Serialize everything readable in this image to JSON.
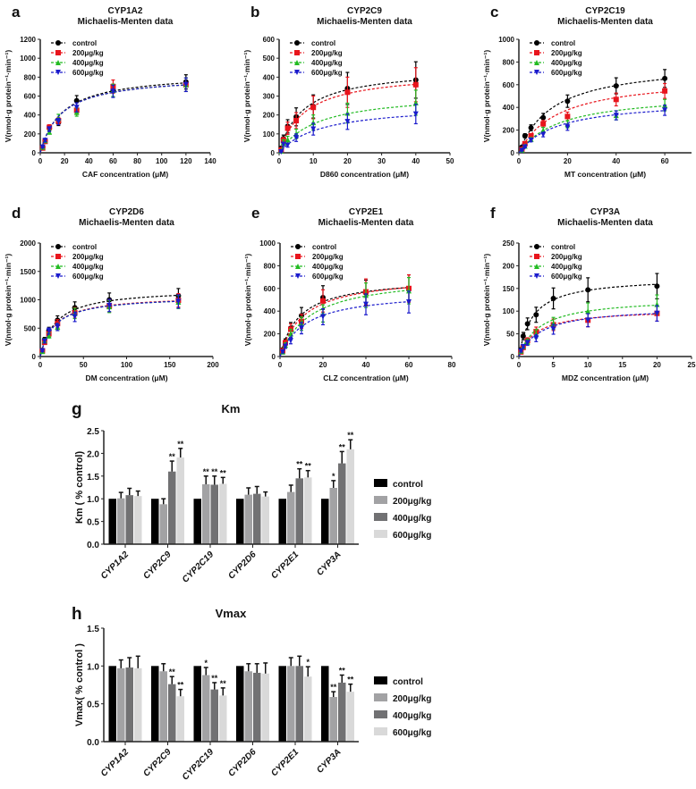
{
  "chart_data": [
    {
      "panel": "a",
      "type": "scatter",
      "title": "CYP1A2",
      "subtitle": "Michaelis-Menten data",
      "xlabel": "CAF concentration (μM)",
      "ylabel": "V(nmol·g protein⁻¹·min⁻¹)",
      "xlim": [
        0,
        140
      ],
      "ylim": [
        0,
        1200
      ],
      "xticks": [
        0,
        20,
        40,
        60,
        80,
        100,
        120,
        140
      ],
      "yticks": [
        0,
        200,
        400,
        600,
        800,
        1000,
        1200
      ],
      "err_frac": 0.1,
      "x": [
        2,
        4,
        7.5,
        15,
        30,
        60,
        120
      ],
      "series": [
        {
          "name": "control",
          "values": [
            60,
            130,
            260,
            320,
            550,
            660,
            750
          ],
          "fit_vmax": 850,
          "fit_km": 18
        },
        {
          "name": "200μg/kg",
          "values": [
            50,
            120,
            270,
            340,
            450,
            700,
            720
          ],
          "fit_vmax": 820,
          "fit_km": 17
        },
        {
          "name": "400μg/kg",
          "values": [
            60,
            130,
            220,
            370,
            430,
            660,
            720
          ],
          "fit_vmax": 820,
          "fit_km": 17
        },
        {
          "name": "600μg/kg",
          "values": [
            60,
            130,
            250,
            330,
            480,
            650,
            720
          ],
          "fit_vmax": 820,
          "fit_km": 17
        }
      ]
    },
    {
      "panel": "b",
      "type": "scatter",
      "title": "CYP2C9",
      "subtitle": "Michaelis-Menten data",
      "xlabel": "D860 concentration (μM)",
      "ylabel": "V(nmol·g protein⁻¹·min⁻¹)",
      "xlim": [
        0,
        50
      ],
      "ylim": [
        0,
        600
      ],
      "xticks": [
        0,
        10,
        20,
        30,
        40,
        50
      ],
      "yticks": [
        0,
        100,
        200,
        300,
        400,
        500,
        600
      ],
      "err_frac": 0.25,
      "x": [
        0.625,
        1.25,
        2.5,
        5,
        10,
        20,
        40
      ],
      "series": [
        {
          "name": "control",
          "values": [
            25,
            75,
            140,
            190,
            245,
            340,
            385
          ],
          "fit_vmax": 450,
          "fit_km": 7
        },
        {
          "name": "200μg/kg",
          "values": [
            15,
            65,
            130,
            170,
            240,
            320,
            360
          ],
          "fit_vmax": 430,
          "fit_km": 7.5
        },
        {
          "name": "400μg/kg",
          "values": [
            10,
            55,
            70,
            100,
            160,
            210,
            265
          ],
          "fit_vmax": 320,
          "fit_km": 11
        },
        {
          "name": "600μg/kg",
          "values": [
            5,
            45,
            40,
            80,
            125,
            165,
            205
          ],
          "fit_vmax": 255,
          "fit_km": 12
        }
      ]
    },
    {
      "panel": "c",
      "type": "scatter",
      "title": "CYP2C19",
      "subtitle": "Michaelis-Menten data",
      "xlabel": "MT concentration (μM)",
      "ylabel": "V(nmol·g protein⁻¹·min⁻¹)",
      "xlim": [
        0,
        71
      ],
      "ylim": [
        0,
        1000
      ],
      "xticks": [
        0,
        20,
        40,
        60
      ],
      "yticks": [
        0,
        200,
        400,
        600,
        800,
        1000
      ],
      "err_frac": 0.12,
      "x": [
        1.25,
        2.5,
        5,
        10,
        20,
        40,
        60
      ],
      "series": [
        {
          "name": "control",
          "values": [
            50,
            150,
            220,
            310,
            455,
            590,
            655
          ],
          "fit_vmax": 800,
          "fit_km": 14
        },
        {
          "name": "200μg/kg",
          "values": [
            30,
            80,
            150,
            255,
            320,
            470,
            545
          ],
          "fit_vmax": 680,
          "fit_km": 16
        },
        {
          "name": "400μg/kg",
          "values": [
            25,
            60,
            120,
            200,
            250,
            330,
            420
          ],
          "fit_vmax": 530,
          "fit_km": 17
        },
        {
          "name": "600μg/kg",
          "values": [
            20,
            50,
            110,
            160,
            225,
            330,
            375
          ],
          "fit_vmax": 470,
          "fit_km": 16
        }
      ]
    },
    {
      "panel": "d",
      "type": "scatter",
      "title": "CYP2D6",
      "subtitle": "Michaelis-Menten data",
      "xlabel": "DM concentration (μM)",
      "ylabel": "V(nmol·g protein⁻¹·min⁻¹)",
      "xlim": [
        0,
        200
      ],
      "ylim": [
        0,
        2000
      ],
      "xticks": [
        0,
        50,
        100,
        150,
        200
      ],
      "yticks": [
        0,
        500,
        1000,
        1500,
        2000
      ],
      "err_frac": 0.12,
      "x": [
        2.5,
        5,
        10,
        20,
        40,
        80,
        160
      ],
      "series": [
        {
          "name": "control",
          "values": [
            110,
            300,
            460,
            640,
            860,
            1000,
            1070
          ],
          "fit_vmax": 1200,
          "fit_km": 18
        },
        {
          "name": "200μg/kg",
          "values": [
            100,
            250,
            400,
            580,
            770,
            890,
            990
          ],
          "fit_vmax": 1080,
          "fit_km": 16
        },
        {
          "name": "400μg/kg",
          "values": [
            90,
            280,
            370,
            520,
            760,
            880,
            960
          ],
          "fit_vmax": 1070,
          "fit_km": 16
        },
        {
          "name": "600μg/kg",
          "values": [
            100,
            270,
            450,
            520,
            700,
            900,
            970
          ],
          "fit_vmax": 1070,
          "fit_km": 16
        }
      ]
    },
    {
      "panel": "e",
      "type": "scatter",
      "title": "CYP2E1",
      "subtitle": "Michaelis-Menten data",
      "xlabel": "CLZ concentration (μM)",
      "ylabel": "V(nmol·g protein⁻¹·min⁻¹)",
      "xlim": [
        0,
        80
      ],
      "ylim": [
        0,
        1000
      ],
      "xticks": [
        0,
        20,
        40,
        60,
        80
      ],
      "yticks": [
        0,
        200,
        400,
        600,
        800,
        1000
      ],
      "err_frac": 0.2,
      "x": [
        1.25,
        2.5,
        5,
        10,
        20,
        40,
        60
      ],
      "series": [
        {
          "name": "control",
          "values": [
            60,
            130,
            250,
            360,
            520,
            560,
            600
          ],
          "fit_vmax": 700,
          "fit_km": 9
        },
        {
          "name": "200μg/kg",
          "values": [
            50,
            120,
            240,
            310,
            490,
            570,
            600
          ],
          "fit_vmax": 720,
          "fit_km": 11
        },
        {
          "name": "400μg/kg",
          "values": [
            40,
            100,
            200,
            290,
            380,
            540,
            580
          ],
          "fit_vmax": 720,
          "fit_km": 14
        },
        {
          "name": "600μg/kg",
          "values": [
            40,
            90,
            140,
            250,
            350,
            460,
            480
          ],
          "fit_vmax": 580,
          "fit_km": 12
        }
      ]
    },
    {
      "panel": "f",
      "type": "scatter",
      "title": "CYP3A",
      "subtitle": "Michaelis-Menten data",
      "xlabel": "MDZ concentration (μM)",
      "ylabel": "V(nmol·g protein⁻¹·min⁻¹)",
      "xlim": [
        0,
        25
      ],
      "ylim": [
        0,
        250
      ],
      "xticks": [
        0,
        5,
        10,
        15,
        20,
        25
      ],
      "yticks": [
        0,
        50,
        100,
        150,
        200,
        250
      ],
      "err_frac": 0.18,
      "x": [
        0.3,
        0.625,
        1.25,
        2.5,
        5,
        10,
        20
      ],
      "series": [
        {
          "name": "control",
          "values": [
            15,
            45,
            72,
            92,
            128,
            147,
            155
          ],
          "fit_vmax": 175,
          "fit_km": 2
        },
        {
          "name": "200μg/kg",
          "values": [
            10,
            20,
            35,
            55,
            70,
            80,
            95
          ],
          "fit_vmax": 105,
          "fit_km": 2.5
        },
        {
          "name": "400μg/kg",
          "values": [
            12,
            22,
            32,
            50,
            73,
            100,
            115
          ],
          "fit_vmax": 130,
          "fit_km": 3
        },
        {
          "name": "600μg/kg",
          "values": [
            12,
            22,
            30,
            40,
            60,
            80,
            95
          ],
          "fit_vmax": 110,
          "fit_km": 3.2
        }
      ]
    },
    {
      "panel": "g",
      "type": "bar",
      "title": "Km",
      "ylabel": "Km ( % control)",
      "ylim": [
        0,
        2.5
      ],
      "yticks": [
        "0.0",
        "0.5",
        "1.0",
        "1.5",
        "2.0",
        "2.5"
      ],
      "categories": [
        "CYP1A2",
        "CYP2C9",
        "CYP2C19",
        "CYP2D6",
        "CYP2E1",
        "CYP3A"
      ],
      "legend": [
        "control",
        "200μg/kg",
        "400μg/kg",
        "600μg/kg"
      ],
      "legend_position": "right",
      "series": [
        {
          "name": "control",
          "values": [
            1,
            1,
            1,
            1,
            1,
            1
          ],
          "err": [
            0,
            0,
            0,
            0,
            0,
            0
          ],
          "sig": [
            "",
            "",
            "",
            "",
            "",
            ""
          ]
        },
        {
          "name": "200μg/kg",
          "values": [
            1.01,
            0.88,
            1.32,
            1.09,
            1.15,
            1.24
          ],
          "err": [
            0.13,
            0.12,
            0.18,
            0.15,
            0.15,
            0.16
          ],
          "sig": [
            "",
            "",
            "**",
            "",
            "",
            "*"
          ]
        },
        {
          "name": "400μg/kg",
          "values": [
            1.08,
            1.6,
            1.31,
            1.11,
            1.45,
            1.78
          ],
          "err": [
            0.15,
            0.23,
            0.19,
            0.16,
            0.21,
            0.26
          ],
          "sig": [
            "",
            "**",
            "**",
            "",
            "**",
            "**"
          ]
        },
        {
          "name": "600μg/kg",
          "values": [
            1.06,
            1.91,
            1.33,
            1.05,
            1.47,
            2.09
          ],
          "err": [
            0.11,
            0.2,
            0.14,
            0.1,
            0.15,
            0.21
          ],
          "sig": [
            "",
            "**",
            "**",
            "",
            "**",
            "**"
          ]
        }
      ]
    },
    {
      "panel": "h",
      "type": "bar",
      "title": "Vmax",
      "ylabel": "Vmax( % control )",
      "ylim": [
        0,
        1.5
      ],
      "yticks": [
        "0.0",
        "0.5",
        "1.0",
        "1.5"
      ],
      "categories": [
        "CYP1A2",
        "CYP2C9",
        "CYP2C19",
        "CYP2D6",
        "CYP2E1",
        "CYP3A"
      ],
      "legend": [
        "control",
        "200μg/kg",
        "400μg/kg",
        "600μg/kg"
      ],
      "legend_position": "right",
      "series": [
        {
          "name": "control",
          "values": [
            1,
            1,
            1,
            1,
            1,
            1
          ],
          "err": [
            0,
            0,
            0,
            0,
            0,
            0
          ],
          "sig": [
            "",
            "",
            "",
            "",
            "",
            ""
          ]
        },
        {
          "name": "200μg/kg",
          "values": [
            0.97,
            0.93,
            0.88,
            0.93,
            1.0,
            0.59
          ],
          "err": [
            0.11,
            0.1,
            0.1,
            0.1,
            0.11,
            0.07
          ],
          "sig": [
            "",
            "",
            "*",
            "",
            "",
            "**"
          ]
        },
        {
          "name": "400μg/kg",
          "values": [
            0.98,
            0.76,
            0.69,
            0.91,
            1.0,
            0.78
          ],
          "err": [
            0.13,
            0.1,
            0.09,
            0.12,
            0.13,
            0.1
          ],
          "sig": [
            "",
            "**",
            "**",
            "",
            "",
            "**"
          ]
        },
        {
          "name": "600μg/kg",
          "values": [
            0.97,
            0.6,
            0.61,
            0.9,
            0.86,
            0.66
          ],
          "err": [
            0.16,
            0.09,
            0.1,
            0.14,
            0.13,
            0.1
          ],
          "sig": [
            "",
            "**",
            "**",
            "",
            "*",
            "**"
          ]
        }
      ]
    }
  ],
  "colors": {
    "mm_series": [
      "#000000",
      "#e8141c",
      "#22bb22",
      "#1a1acc"
    ],
    "bar_series": [
      "#000000",
      "#a2a2a4",
      "#717173",
      "#d9d9d9"
    ]
  },
  "mm_markers": [
    "circle",
    "square",
    "triangle-up",
    "triangle-down"
  ]
}
